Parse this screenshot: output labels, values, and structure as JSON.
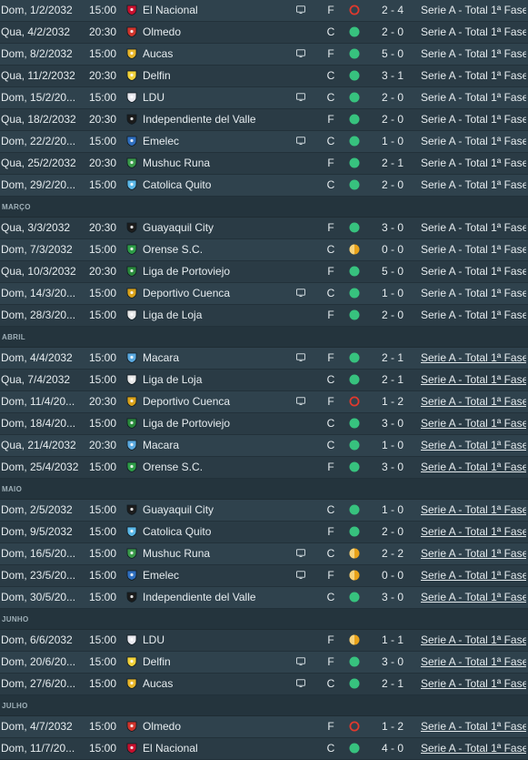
{
  "colors": {
    "win": "#37c27e",
    "loss": "#e0392d",
    "draw": "#e8a21a",
    "row_odd": "#2f424d",
    "row_even": "#2a3b45",
    "month_header": "#24343d"
  },
  "rows": [
    {
      "kind": "match",
      "date": "Dom, 1/2/2032",
      "time": "15:00",
      "team": "El Nacional",
      "crest": "el-nacional-crest",
      "crest_color": "#c8102e",
      "tv": true,
      "venue": "F",
      "result": "loss",
      "score": "2 - 4",
      "competition": "Serie A - Total 1ª Fase",
      "comp_link": false
    },
    {
      "kind": "match",
      "date": "Qua, 4/2/2032",
      "time": "20:30",
      "team": "Olmedo",
      "crest": "olmedo-crest",
      "crest_color": "#d0342c",
      "tv": false,
      "venue": "C",
      "result": "win",
      "score": "2 - 0",
      "competition": "Serie A - Total 1ª Fase",
      "comp_link": false
    },
    {
      "kind": "match",
      "date": "Dom, 8/2/2032",
      "time": "15:00",
      "team": "Aucas",
      "crest": "aucas-crest",
      "crest_color": "#e8b62a",
      "tv": true,
      "venue": "F",
      "result": "win",
      "score": "5 - 0",
      "competition": "Serie A - Total 1ª Fase",
      "comp_link": false
    },
    {
      "kind": "match",
      "date": "Qua, 11/2/2032",
      "time": "20:30",
      "team": "Delfin",
      "crest": "delfin-crest",
      "crest_color": "#f2d23a",
      "tv": false,
      "venue": "C",
      "result": "win",
      "score": "3 - 1",
      "competition": "Serie A - Total 1ª Fase",
      "comp_link": false
    },
    {
      "kind": "match",
      "date": "Dom, 15/2/20...",
      "time": "15:00",
      "team": "LDU",
      "crest": "ldu-crest",
      "crest_color": "#e9e9ef",
      "tv": true,
      "venue": "C",
      "result": "win",
      "score": "2 - 0",
      "competition": "Serie A - Total 1ª Fase",
      "comp_link": false
    },
    {
      "kind": "match",
      "date": "Qua, 18/2/2032",
      "time": "20:30",
      "team": "Independiente del Valle",
      "crest": "independiente-del-valle-crest",
      "crest_color": "#1b1b1b",
      "tv": false,
      "venue": "F",
      "result": "win",
      "score": "2 - 0",
      "competition": "Serie A - Total 1ª Fase",
      "comp_link": false
    },
    {
      "kind": "match",
      "date": "Dom, 22/2/20...",
      "time": "15:00",
      "team": "Emelec",
      "crest": "emelec-crest",
      "crest_color": "#2f6fc0",
      "tv": true,
      "venue": "C",
      "result": "win",
      "score": "1 - 0",
      "competition": "Serie A - Total 1ª Fase",
      "comp_link": false
    },
    {
      "kind": "match",
      "date": "Qua, 25/2/2032",
      "time": "20:30",
      "team": "Mushuc Runa",
      "crest": "mushuc-runa-crest",
      "crest_color": "#3a9a4a",
      "tv": false,
      "venue": "F",
      "result": "win",
      "score": "2 - 1",
      "competition": "Serie A - Total 1ª Fase",
      "comp_link": false
    },
    {
      "kind": "match",
      "date": "Dom, 29/2/20...",
      "time": "15:00",
      "team": "Catolica Quito",
      "crest": "catolica-quito-crest",
      "crest_color": "#5bb8e8",
      "tv": false,
      "venue": "C",
      "result": "win",
      "score": "2 - 0",
      "competition": "Serie A - Total 1ª Fase",
      "comp_link": false
    },
    {
      "kind": "month",
      "label": "MARÇO"
    },
    {
      "kind": "match",
      "date": "Qua, 3/3/2032",
      "time": "20:30",
      "team": "Guayaquil City",
      "crest": "guayaquil-city-crest",
      "crest_color": "#1c1c1c",
      "tv": false,
      "venue": "F",
      "result": "win",
      "score": "3 - 0",
      "competition": "Serie A - Total 1ª Fase",
      "comp_link": false
    },
    {
      "kind": "match",
      "date": "Dom, 7/3/2032",
      "time": "15:00",
      "team": "Orense S.C.",
      "crest": "orense-crest",
      "crest_color": "#2e9e48",
      "tv": false,
      "venue": "C",
      "result": "draw",
      "score": "0 - 0",
      "competition": "Serie A - Total 1ª Fase",
      "comp_link": false
    },
    {
      "kind": "match",
      "date": "Qua, 10/3/2032",
      "time": "20:30",
      "team": "Liga de Portoviejo",
      "crest": "liga-de-portoviejo-crest",
      "crest_color": "#2a8a3c",
      "tv": false,
      "venue": "F",
      "result": "win",
      "score": "5 - 0",
      "competition": "Serie A - Total 1ª Fase",
      "comp_link": false
    },
    {
      "kind": "match",
      "date": "Dom, 14/3/20...",
      "time": "15:00",
      "team": "Deportivo Cuenca",
      "crest": "deportivo-cuenca-crest",
      "crest_color": "#d9a21a",
      "tv": true,
      "venue": "C",
      "result": "win",
      "score": "1 - 0",
      "competition": "Serie A - Total 1ª Fase",
      "comp_link": false
    },
    {
      "kind": "match",
      "date": "Dom, 28/3/20...",
      "time": "15:00",
      "team": "Liga de Loja",
      "crest": "liga-de-loja-crest",
      "crest_color": "#e8e8e8",
      "tv": false,
      "venue": "F",
      "result": "win",
      "score": "2 - 0",
      "competition": "Serie A - Total 1ª Fase",
      "comp_link": false
    },
    {
      "kind": "month",
      "label": "ABRIL"
    },
    {
      "kind": "match",
      "date": "Dom, 4/4/2032",
      "time": "15:00",
      "team": "Macara",
      "crest": "macara-crest",
      "crest_color": "#5aa9e0",
      "tv": true,
      "venue": "F",
      "result": "win",
      "score": "2 - 1",
      "competition": "Serie A - Total 1ª Fase",
      "comp_link": true
    },
    {
      "kind": "match",
      "date": "Qua, 7/4/2032",
      "time": "15:00",
      "team": "Liga de Loja",
      "crest": "liga-de-loja-crest",
      "crest_color": "#e8e8e8",
      "tv": false,
      "venue": "C",
      "result": "win",
      "score": "2 - 1",
      "competition": "Serie A - Total 1ª Fase",
      "comp_link": true
    },
    {
      "kind": "match",
      "date": "Dom, 11/4/20...",
      "time": "20:30",
      "team": "Deportivo Cuenca",
      "crest": "deportivo-cuenca-crest",
      "crest_color": "#d9a21a",
      "tv": true,
      "venue": "F",
      "result": "loss",
      "score": "1 - 2",
      "competition": "Serie A - Total 1ª Fase",
      "comp_link": true
    },
    {
      "kind": "match",
      "date": "Dom, 18/4/20...",
      "time": "15:00",
      "team": "Liga de Portoviejo",
      "crest": "liga-de-portoviejo-crest",
      "crest_color": "#2a8a3c",
      "tv": false,
      "venue": "C",
      "result": "win",
      "score": "3 - 0",
      "competition": "Serie A - Total 1ª Fase",
      "comp_link": true
    },
    {
      "kind": "match",
      "date": "Qua, 21/4/2032",
      "time": "20:30",
      "team": "Macara",
      "crest": "macara-crest",
      "crest_color": "#5aa9e0",
      "tv": false,
      "venue": "C",
      "result": "win",
      "score": "1 - 0",
      "competition": "Serie A - Total 1ª Fase",
      "comp_link": true
    },
    {
      "kind": "match",
      "date": "Dom, 25/4/2032",
      "time": "15:00",
      "team": "Orense S.C.",
      "crest": "orense-crest",
      "crest_color": "#2e9e48",
      "tv": false,
      "venue": "F",
      "result": "win",
      "score": "3 - 0",
      "competition": "Serie A - Total 1ª Fase",
      "comp_link": true
    },
    {
      "kind": "month",
      "label": "MAIO"
    },
    {
      "kind": "match",
      "date": "Dom, 2/5/2032",
      "time": "15:00",
      "team": "Guayaquil City",
      "crest": "guayaquil-city-crest",
      "crest_color": "#1c1c1c",
      "tv": false,
      "venue": "C",
      "result": "win",
      "score": "1 - 0",
      "competition": "Serie A - Total 1ª Fase",
      "comp_link": true
    },
    {
      "kind": "match",
      "date": "Dom, 9/5/2032",
      "time": "15:00",
      "team": "Catolica Quito",
      "crest": "catolica-quito-crest",
      "crest_color": "#5bb8e8",
      "tv": false,
      "venue": "F",
      "result": "win",
      "score": "2 - 0",
      "competition": "Serie A - Total 1ª Fase",
      "comp_link": true
    },
    {
      "kind": "match",
      "date": "Dom, 16/5/20...",
      "time": "15:00",
      "team": "Mushuc Runa",
      "crest": "mushuc-runa-crest",
      "crest_color": "#3a9a4a",
      "tv": true,
      "venue": "C",
      "result": "draw",
      "score": "2 - 2",
      "competition": "Serie A - Total 1ª Fase",
      "comp_link": true
    },
    {
      "kind": "match",
      "date": "Dom, 23/5/20...",
      "time": "15:00",
      "team": "Emelec",
      "crest": "emelec-crest",
      "crest_color": "#2f6fc0",
      "tv": true,
      "venue": "F",
      "result": "draw",
      "score": "0 - 0",
      "competition": "Serie A - Total 1ª Fase",
      "comp_link": true
    },
    {
      "kind": "match",
      "date": "Dom, 30/5/20...",
      "time": "15:00",
      "team": "Independiente del Valle",
      "crest": "independiente-del-valle-crest",
      "crest_color": "#1b1b1b",
      "tv": false,
      "venue": "C",
      "result": "win",
      "score": "3 - 0",
      "competition": "Serie A - Total 1ª Fase",
      "comp_link": true
    },
    {
      "kind": "month",
      "label": "JUNHO"
    },
    {
      "kind": "match",
      "date": "Dom, 6/6/2032",
      "time": "15:00",
      "team": "LDU",
      "crest": "ldu-crest",
      "crest_color": "#e9e9ef",
      "tv": false,
      "venue": "F",
      "result": "draw",
      "score": "1 - 1",
      "competition": "Serie A - Total 1ª Fase",
      "comp_link": true
    },
    {
      "kind": "match",
      "date": "Dom, 20/6/20...",
      "time": "15:00",
      "team": "Delfin",
      "crest": "delfin-crest",
      "crest_color": "#f2d23a",
      "tv": true,
      "venue": "F",
      "result": "win",
      "score": "3 - 0",
      "competition": "Serie A - Total 1ª Fase",
      "comp_link": true
    },
    {
      "kind": "match",
      "date": "Dom, 27/6/20...",
      "time": "15:00",
      "team": "Aucas",
      "crest": "aucas-crest",
      "crest_color": "#e8b62a",
      "tv": true,
      "venue": "C",
      "result": "win",
      "score": "2 - 1",
      "competition": "Serie A - Total 1ª Fase",
      "comp_link": true
    },
    {
      "kind": "month",
      "label": "JULHO"
    },
    {
      "kind": "match",
      "date": "Dom, 4/7/2032",
      "time": "15:00",
      "team": "Olmedo",
      "crest": "olmedo-crest",
      "crest_color": "#d0342c",
      "tv": false,
      "venue": "F",
      "result": "loss",
      "score": "1 - 2",
      "competition": "Serie A - Total 1ª Fase",
      "comp_link": true
    },
    {
      "kind": "match",
      "date": "Dom, 11/7/20...",
      "time": "15:00",
      "team": "El Nacional",
      "crest": "el-nacional-crest",
      "crest_color": "#c8102e",
      "tv": false,
      "venue": "C",
      "result": "win",
      "score": "4 - 0",
      "competition": "Serie A - Total 1ª Fase",
      "comp_link": true
    }
  ]
}
